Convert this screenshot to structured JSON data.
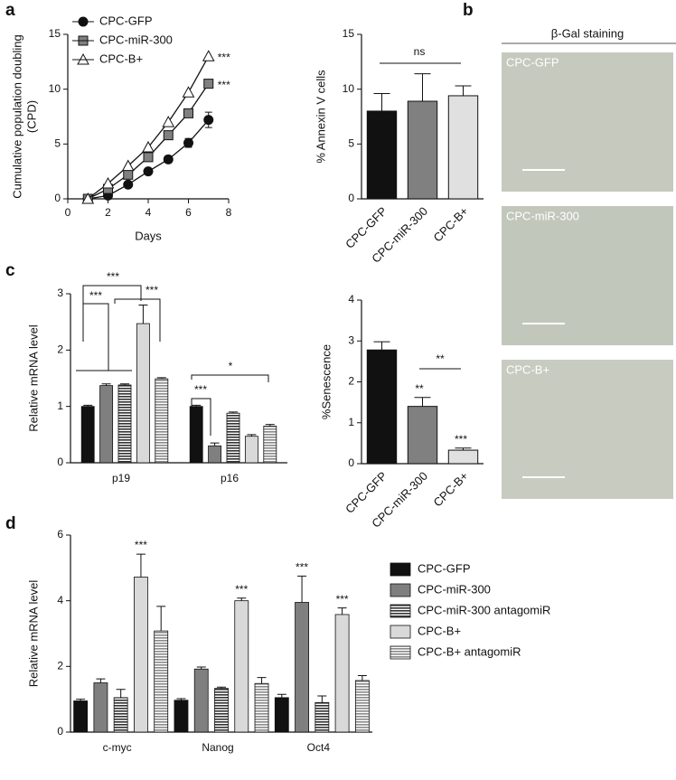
{
  "chart_data": [
    {
      "panel": "a",
      "type": "line",
      "ylabel": [
        "Cumulative population doubling",
        "(CPD)"
      ],
      "xlabel": "Days",
      "xlim": [
        0,
        8
      ],
      "xticks": [
        0,
        2,
        4,
        6,
        8
      ],
      "ylim": [
        0,
        15
      ],
      "yticks": [
        0,
        5,
        10,
        15
      ],
      "x": [
        1,
        2,
        3,
        4,
        5,
        6,
        7
      ],
      "legend": "upper left",
      "series": [
        {
          "name": "CPC-GFP",
          "color": "#111111",
          "marker": "circle",
          "values": [
            0,
            0.3,
            1.3,
            2.5,
            3.6,
            5.1,
            7.2
          ],
          "errors": [
            0,
            0,
            0,
            0,
            0.3,
            0.4,
            0.7
          ]
        },
        {
          "name": "CPC-miR-300",
          "color": "#808080",
          "marker": "square",
          "values": [
            0,
            0.9,
            2.2,
            3.8,
            5.8,
            7.8,
            10.5
          ],
          "errors": [
            0,
            0,
            0,
            0,
            0,
            0,
            0
          ]
        },
        {
          "name": "CPC-B+",
          "color": "#ffffff",
          "marker": "triangle",
          "values": [
            0,
            1.4,
            3.0,
            4.7,
            7.0,
            9.7,
            13.0
          ],
          "errors": [
            0,
            0,
            0,
            0,
            0,
            0,
            0
          ]
        }
      ],
      "annotations": [
        "***",
        "***"
      ]
    },
    {
      "panel": "b",
      "type": "bar",
      "ylabel": "% Annexin V cells",
      "categories": [
        "CPC-GFP",
        "CPC-miR-300",
        "CPC-B+"
      ],
      "values": [
        8.0,
        8.9,
        9.4
      ],
      "errors": [
        1.6,
        2.5,
        0.9
      ],
      "colors": [
        "#111111",
        "#808080",
        "#e0e0e0"
      ],
      "ylim": [
        0,
        15
      ],
      "yticks": [
        0,
        5,
        10,
        15
      ],
      "annotations": [
        "ns"
      ]
    },
    {
      "type": "bar",
      "ylabel": "%Senescence",
      "categories": [
        "CPC-GFP",
        "CPC-miR-300",
        "CPC-B+"
      ],
      "values": [
        2.78,
        1.4,
        0.33
      ],
      "errors": [
        0.2,
        0.22,
        0.05
      ],
      "colors": [
        "#111111",
        "#808080",
        "#e0e0e0"
      ],
      "ylim": [
        0,
        4
      ],
      "yticks": [
        0,
        1,
        2,
        3,
        4
      ],
      "annotations": [
        "**",
        "***",
        "**"
      ]
    },
    {
      "panel": "c",
      "type": "grouped_bar",
      "ylabel": "Relative mRNA level",
      "categories": [
        "p19",
        "p16"
      ],
      "ylim": [
        0,
        3
      ],
      "yticks": [
        0,
        1,
        2,
        3
      ],
      "series": [
        {
          "color": "#111111",
          "values": [
            1.0,
            1.0
          ],
          "errors": [
            0.02,
            0.02
          ]
        },
        {
          "color": "#7f7f7f",
          "values": [
            1.37,
            0.3
          ],
          "errors": [
            0.03,
            0.05
          ]
        },
        {
          "color": "#333333",
          "hatch": true,
          "values": [
            1.38,
            0.88
          ],
          "errors": [
            0.02,
            0.02
          ]
        },
        {
          "color": "#d9d9d9",
          "values": [
            2.47,
            0.47
          ],
          "errors": [
            0.33,
            0.03
          ]
        },
        {
          "color": "#8a8a8a",
          "hatch": true,
          "values": [
            1.49,
            0.65
          ],
          "errors": [
            0.02,
            0.03
          ]
        }
      ],
      "annotations": [
        "***",
        "***",
        "***",
        "*",
        "***"
      ]
    },
    {
      "panel": "d",
      "type": "grouped_bar",
      "ylabel": "Relative mRNA level",
      "categories": [
        "c-myc",
        "Nanog",
        "Oct4"
      ],
      "ylim": [
        0,
        6
      ],
      "yticks": [
        0,
        2,
        4,
        6
      ],
      "legend": "right",
      "series": [
        {
          "name": "CPC-GFP",
          "color": "#111111",
          "values": [
            0.95,
            0.97,
            1.05
          ],
          "errors": [
            0.05,
            0.05,
            0.1
          ]
        },
        {
          "name": "CPC-miR-300",
          "color": "#7f7f7f",
          "values": [
            1.5,
            1.92,
            3.95
          ],
          "errors": [
            0.12,
            0.06,
            0.8
          ]
        },
        {
          "name": "CPC-miR-300 antagomiR",
          "color": "#333333",
          "hatch": true,
          "values": [
            1.05,
            1.33,
            0.9
          ],
          "errors": [
            0.25,
            0.04,
            0.2
          ]
        },
        {
          "name": "CPC-B+",
          "color": "#d9d9d9",
          "values": [
            4.72,
            4.0,
            3.58
          ],
          "errors": [
            0.7,
            0.08,
            0.2
          ]
        },
        {
          "name": "CPC-B+ antagomiR",
          "color": "#8a8a8a",
          "hatch": true,
          "values": [
            3.08,
            1.48,
            1.57
          ],
          "errors": [
            0.75,
            0.18,
            0.15
          ]
        }
      ],
      "annotations": [
        "***",
        "***",
        "***",
        "***"
      ]
    }
  ],
  "images": {
    "title": "β-Gal staining",
    "labels": [
      "CPC-GFP",
      "CPC-miR-300",
      "CPC-B+"
    ]
  }
}
